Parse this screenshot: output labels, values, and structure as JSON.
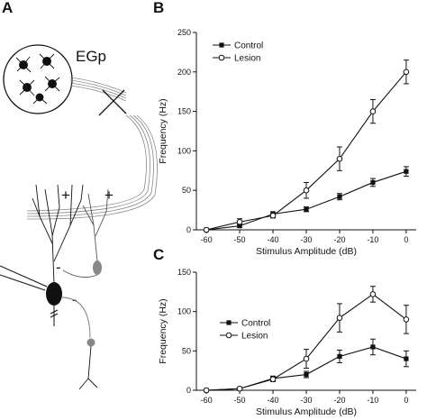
{
  "figure": {
    "panel_a_label": "A",
    "egp_label": "EGp",
    "plus_sign": "+",
    "minus_sign": "-"
  },
  "chart_data": [
    {
      "panel": "B",
      "type": "line",
      "xlabel": "Stimulus Amplitude (dB)",
      "ylabel": "Frequency (Hz)",
      "x": [
        -60,
        -50,
        -40,
        -30,
        -20,
        -10,
        0
      ],
      "xticks": [
        "-60",
        "-50",
        "-40",
        "-30",
        "-20",
        "-10",
        "0"
      ],
      "yticks": [
        "0",
        "50",
        "100",
        "150",
        "200",
        "250"
      ],
      "xlim": [
        -63,
        3
      ],
      "ylim": [
        0,
        250
      ],
      "grid": false,
      "legend_position": "top-left",
      "series": [
        {
          "name": "Control",
          "marker": "filled-square",
          "values": [
            0,
            5,
            20,
            26,
            42,
            60,
            74
          ],
          "errors": [
            0,
            2,
            3,
            3,
            4,
            5,
            6
          ]
        },
        {
          "name": "Lesion",
          "marker": "open-circle",
          "values": [
            0,
            10,
            18,
            50,
            90,
            150,
            200
          ],
          "errors": [
            0,
            4,
            3,
            10,
            15,
            15,
            15
          ]
        }
      ]
    },
    {
      "panel": "C",
      "type": "line",
      "xlabel": "Stimulus Amplitude (dB)",
      "ylabel": "Frequency (Hz)",
      "x": [
        -60,
        -50,
        -40,
        -30,
        -20,
        -10,
        0
      ],
      "xticks": [
        "-60",
        "-50",
        "-40",
        "-30",
        "-20",
        "-10",
        "0"
      ],
      "yticks": [
        "0",
        "50",
        "100",
        "150"
      ],
      "xlim": [
        -63,
        3
      ],
      "ylim": [
        0,
        150
      ],
      "grid": false,
      "legend_position": "middle-left",
      "series": [
        {
          "name": "Control",
          "marker": "filled-square",
          "values": [
            0,
            2,
            15,
            20,
            43,
            55,
            40
          ],
          "errors": [
            0,
            1,
            3,
            4,
            8,
            10,
            10
          ]
        },
        {
          "name": "Lesion",
          "marker": "open-circle",
          "values": [
            0,
            2,
            14,
            40,
            92,
            122,
            90
          ],
          "errors": [
            0,
            1,
            3,
            12,
            18,
            10,
            18
          ]
        }
      ]
    }
  ]
}
